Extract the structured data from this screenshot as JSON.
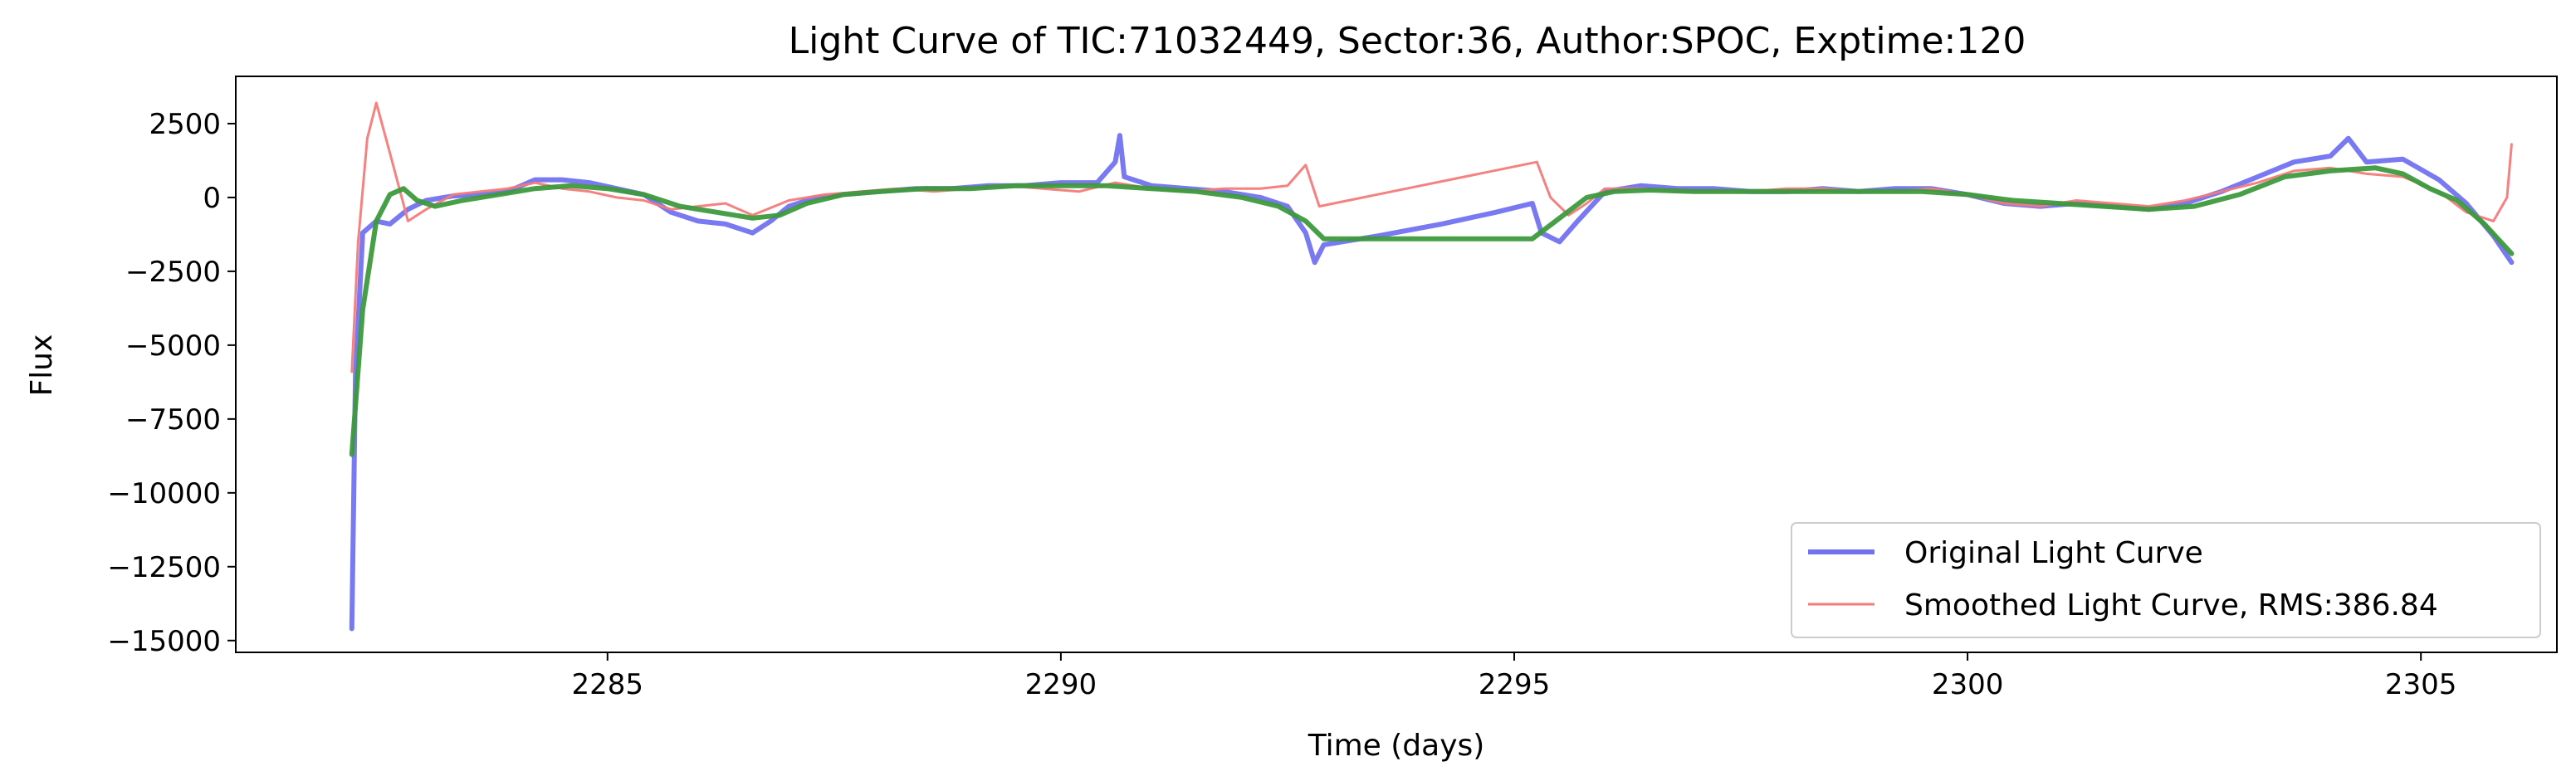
{
  "chart_data": {
    "type": "line",
    "title": "Light Curve of TIC:71032449, Sector:36, Author:SPOC, Exptime:120",
    "xlabel": "Time (days)",
    "ylabel": "Flux",
    "xlim": [
      2280.9,
      2306.5
    ],
    "ylim": [
      -15400,
      4100
    ],
    "xticks": [
      2285,
      2290,
      2295,
      2300,
      2305
    ],
    "xtick_labels": [
      "2285",
      "2290",
      "2295",
      "2300",
      "2305"
    ],
    "yticks": [
      2500,
      0,
      -2500,
      -5000,
      -7500,
      -10000,
      -12500,
      -15000
    ],
    "ytick_labels": [
      "2500",
      "0",
      "−2500",
      "−5000",
      "−7500",
      "−10000",
      "−12500",
      "−15000"
    ],
    "grid": false,
    "legend_position": "lower-right",
    "legend_entries": [
      "Original Light Curve",
      "Smoothed Light Curve, RMS:386.84"
    ],
    "colors": {
      "original": "#7272f0",
      "smoothed": "#f47a7a",
      "trend": "#3d9a3d"
    },
    "series": [
      {
        "name": "Original Light Curve",
        "x": [
          2282.18,
          2282.22,
          2282.3,
          2282.45,
          2282.6,
          2282.8,
          2283.0,
          2283.3,
          2283.6,
          2283.9,
          2284.2,
          2284.5,
          2284.8,
          2285.1,
          2285.4,
          2285.7,
          2286.0,
          2286.3,
          2286.6,
          2286.8,
          2287.0,
          2287.3,
          2287.6,
          2288.0,
          2288.4,
          2288.8,
          2289.2,
          2289.6,
          2290.0,
          2290.4,
          2290.6,
          2290.65,
          2290.7,
          2291.0,
          2291.4,
          2291.8,
          2292.2,
          2292.5,
          2292.7,
          2292.8,
          2292.9,
          2293.5,
          2294.2,
          2294.8,
          2295.2,
          2295.3,
          2295.5,
          2295.7,
          2296.0,
          2296.4,
          2296.8,
          2297.2,
          2297.6,
          2298.0,
          2298.4,
          2298.8,
          2299.2,
          2299.6,
          2300.0,
          2300.4,
          2300.8,
          2301.2,
          2301.6,
          2302.0,
          2302.4,
          2302.8,
          2303.2,
          2303.6,
          2304.0,
          2304.2,
          2304.4,
          2304.8,
          2305.2,
          2305.5,
          2305.8,
          2306.0
        ],
        "y": [
          -14600,
          -6000,
          -1200,
          -800,
          -900,
          -400,
          -100,
          50,
          100,
          200,
          600,
          600,
          500,
          300,
          100,
          -500,
          -800,
          -900,
          -1200,
          -800,
          -300,
          0,
          100,
          200,
          300,
          300,
          400,
          400,
          500,
          500,
          1200,
          2100,
          700,
          400,
          300,
          200,
          0,
          -300,
          -1200,
          -2200,
          -1600,
          -1300,
          -900,
          -500,
          -200,
          -1200,
          -1500,
          -800,
          200,
          400,
          300,
          300,
          200,
          200,
          300,
          200,
          300,
          300,
          100,
          -200,
          -300,
          -200,
          -300,
          -400,
          -200,
          200,
          700,
          1200,
          1400,
          2000,
          1200,
          1300,
          600,
          -200,
          -1300,
          -2200
        ]
      },
      {
        "name": "Smoothed Light Curve, RMS:386.84",
        "x": [
          2282.18,
          2282.25,
          2282.35,
          2282.45,
          2282.6,
          2282.8,
          2283.0,
          2283.3,
          2283.6,
          2283.9,
          2284.2,
          2284.5,
          2284.8,
          2285.1,
          2285.4,
          2285.7,
          2286.0,
          2286.3,
          2286.6,
          2287.0,
          2287.4,
          2287.8,
          2288.2,
          2288.6,
          2289.0,
          2289.4,
          2289.8,
          2290.2,
          2290.6,
          2291.0,
          2291.4,
          2291.8,
          2292.2,
          2292.5,
          2292.7,
          2292.85,
          2295.25,
          2295.4,
          2295.6,
          2295.8,
          2296.0,
          2296.4,
          2296.8,
          2297.2,
          2297.6,
          2298.0,
          2298.4,
          2298.8,
          2299.2,
          2299.6,
          2300.0,
          2300.4,
          2300.8,
          2301.2,
          2301.6,
          2302.0,
          2302.4,
          2302.8,
          2303.2,
          2303.6,
          2304.0,
          2304.4,
          2304.8,
          2305.2,
          2305.5,
          2305.8,
          2305.95,
          2306.0
        ],
        "y": [
          -5900,
          -1500,
          2000,
          3200,
          1500,
          -800,
          -400,
          100,
          200,
          300,
          500,
          300,
          200,
          0,
          -100,
          -400,
          -300,
          -200,
          -600,
          -100,
          100,
          200,
          300,
          200,
          300,
          400,
          300,
          200,
          500,
          300,
          200,
          300,
          300,
          400,
          1100,
          -300,
          1200,
          0,
          -600,
          -200,
          300,
          300,
          200,
          200,
          200,
          300,
          300,
          200,
          200,
          300,
          100,
          -200,
          -300,
          -100,
          -200,
          -300,
          -100,
          200,
          500,
          900,
          1000,
          800,
          700,
          200,
          -500,
          -800,
          0,
          1800
        ]
      },
      {
        "name": "",
        "x": [
          2282.18,
          2282.3,
          2282.45,
          2282.6,
          2282.75,
          2282.9,
          2283.1,
          2283.4,
          2283.8,
          2284.2,
          2284.6,
          2285.0,
          2285.4,
          2285.8,
          2286.2,
          2286.6,
          2286.9,
          2287.2,
          2287.6,
          2288.0,
          2288.5,
          2289.0,
          2289.5,
          2290.0,
          2290.5,
          2291.0,
          2291.5,
          2292.0,
          2292.4,
          2292.7,
          2292.9,
          2294.0,
          2295.2,
          2295.5,
          2295.8,
          2296.1,
          2296.5,
          2297.0,
          2297.5,
          2298.0,
          2298.5,
          2299.0,
          2299.5,
          2300.0,
          2300.5,
          2301.0,
          2301.5,
          2302.0,
          2302.5,
          2303.0,
          2303.5,
          2304.0,
          2304.5,
          2304.8,
          2305.1,
          2305.4,
          2305.7,
          2306.0
        ],
        "y": [
          -8700,
          -3800,
          -800,
          100,
          300,
          -100,
          -300,
          -100,
          100,
          300,
          400,
          300,
          100,
          -300,
          -500,
          -700,
          -600,
          -200,
          100,
          200,
          300,
          300,
          400,
          400,
          400,
          300,
          200,
          0,
          -300,
          -800,
          -1400,
          -1400,
          -1400,
          -700,
          0,
          200,
          250,
          200,
          200,
          200,
          200,
          200,
          200,
          100,
          -100,
          -200,
          -300,
          -400,
          -300,
          100,
          700,
          900,
          1000,
          800,
          300,
          -100,
          -900,
          -1900
        ]
      }
    ]
  }
}
